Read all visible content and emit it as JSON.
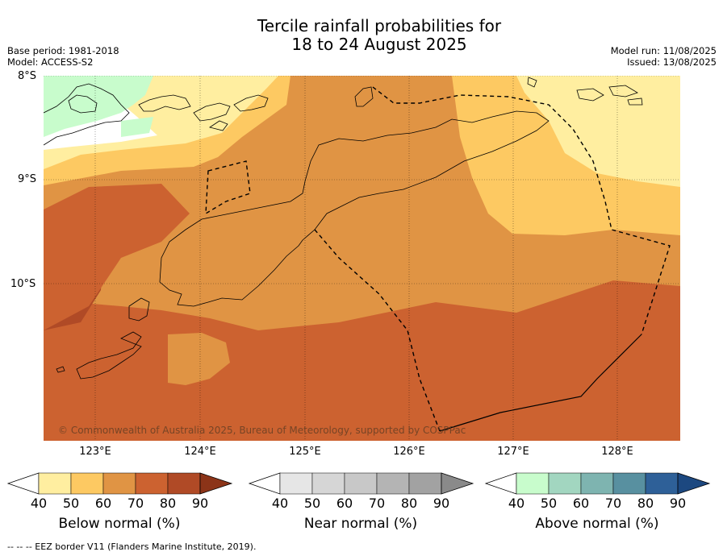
{
  "title": {
    "line1": "Tercile rainfall probabilities for",
    "line2": "18 to 24 August 2025"
  },
  "meta_left": {
    "base_period": "Base period: 1981-2018",
    "model": "Model: ACCESS-S2"
  },
  "meta_right": {
    "model_run": "Model run: 11/08/2025",
    "issued": "Issued: 13/08/2025"
  },
  "axes": {
    "lat_labels": [
      "8°S",
      "9°S",
      "10°S"
    ],
    "lon_labels": [
      "123°E",
      "124°E",
      "125°E",
      "126°E",
      "127°E",
      "128°E"
    ]
  },
  "copyright": "© Commonwealth of Australia 2025, Bureau of Meteorology, supported by COSPPac",
  "colorbars": [
    {
      "title": "Below normal (%)",
      "ticks": [
        "40",
        "50",
        "60",
        "70",
        "80",
        "90"
      ],
      "colors": [
        "#ffeea0",
        "#fdc962",
        "#e09444",
        "#cc6230",
        "#b04a26",
        "#8c3418"
      ]
    },
    {
      "title": "Near normal (%)",
      "ticks": [
        "40",
        "50",
        "60",
        "70",
        "80",
        "90"
      ],
      "colors": [
        "#e6e6e6",
        "#d6d6d6",
        "#c8c8c8",
        "#b4b4b4",
        "#a2a2a2",
        "#8a8a8a"
      ]
    },
    {
      "title": "Above normal (%)",
      "ticks": [
        "40",
        "50",
        "60",
        "70",
        "80",
        "90"
      ],
      "colors": [
        "#c8fccc",
        "#a2d6c0",
        "#7eb4b0",
        "#5890a0",
        "#2e6098",
        "#1c4880"
      ]
    }
  ],
  "footer": "--  --  -- EEZ border V11 (Flanders Marine Institute, 2019).",
  "map_colors": {
    "c50": "#ffeea0",
    "c60": "#fdc962",
    "c70": "#e09444",
    "c80": "#cc6230",
    "c90": "#b04a26",
    "above": "#c8fccc"
  }
}
